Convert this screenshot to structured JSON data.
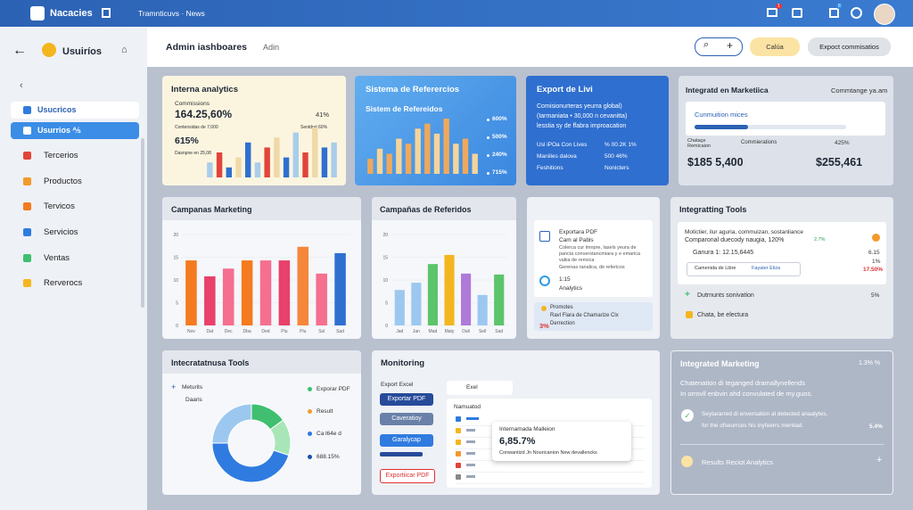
{
  "topbar": {
    "brand": "Nacacies",
    "breadcrumb": "Tramnticuvs · News",
    "badges": [
      "1",
      "8"
    ]
  },
  "sidebar": {
    "title": "Usuiríos",
    "items": [
      "Usucricos",
      "Usurrios ⅍",
      "Tercerios",
      "Productos",
      "Tervicos",
      "Servicios",
      "Ventas",
      "Rerverocs"
    ]
  },
  "header": {
    "title": "Admin iashboares",
    "tab": "Adin",
    "buttons": [
      "Calúa",
      "Expoct commisatios"
    ]
  },
  "analytics": {
    "title": "Interna analytics",
    "label": "Commissions",
    "value": "164.25,60%",
    "side": "41%",
    "note1": "Contensidas de 7,000",
    "note2": "Sentdral 60%",
    "value2": "615%",
    "note3": "Dasnpne en 25,08",
    "bars": {
      "values": [
        3,
        5,
        2,
        4,
        7,
        3,
        6,
        8,
        4,
        9,
        5,
        10,
        6,
        7
      ],
      "colors": [
        "#a9cdea",
        "#e2443a",
        "#2f6fd0",
        "#f0d9a8",
        "#2f6fd0",
        "#a9cdea",
        "#e2443a",
        "#f0d9a8",
        "#2f6fd0",
        "#a9cdea",
        "#e2443a",
        "#f0d9a8",
        "#2f6fd0",
        "#a9cdea"
      ]
    }
  },
  "referencias": {
    "title": "Sistema de Referercios",
    "subtitle": "Sistem de Refereidos",
    "labels": [
      "600%",
      "500%",
      "240%",
      "715%"
    ],
    "bars": {
      "values": [
        3,
        5,
        4,
        7,
        6,
        9,
        10,
        8,
        11,
        6,
        7,
        4
      ],
      "colors": [
        "#f0a85a",
        "#f5d49a",
        "#f0a85a",
        "#f5d49a",
        "#f0a85a",
        "#f5d49a",
        "#f0a85a",
        "#f5d49a",
        "#f0a85a",
        "#f5d49a",
        "#f0a85a",
        "#f5d49a"
      ]
    }
  },
  "export": {
    "title": "Export de Livi",
    "lines": [
      "Comisionurteras yeurra global)",
      "(Iarmaniata • 30,000 n cevanitta)",
      "lesstia sy de ffabra improacation"
    ],
    "stats": [
      [
        "Usl iPOa Con Lives",
        "% 00.2K 1%"
      ],
      [
        "Maniiles dalova",
        "500 46%"
      ],
      [
        "Feshitions",
        "Nonicters"
      ]
    ]
  },
  "marketing": {
    "title": "Integratd en Marketiica",
    "time": "Commtange ya.am",
    "box": "Cunmuition mices",
    "label1": "Chataçe Remicaion",
    "label2": "Commierations",
    "pct": "425%",
    "amount1": "$185 5,400",
    "amount2": "$255,461"
  },
  "campanas": {
    "title": "Campanas Marketing",
    "categories": [
      "Nov",
      "Dat",
      "Dec",
      "Dba",
      "Ded",
      "Plu",
      "Plu",
      "Ssl",
      "Sad"
    ],
    "values": [
      14.3,
      10.8,
      12.5,
      14.3,
      14.3,
      14.3,
      17.3,
      11.4,
      15.9
    ],
    "colors": [
      "#f47b20",
      "#e8416b",
      "#f56f8f",
      "#f47b20",
      "#f56f8f",
      "#e8416b",
      "#f4873a",
      "#f56f8f",
      "#2f6fd0"
    ],
    "ylim": [
      0,
      20
    ],
    "yticks": [
      0,
      5,
      10,
      15,
      20
    ]
  },
  "referidos": {
    "title": "Campañas de Referidos",
    "categories": [
      "Jad",
      "Jan",
      "Mad",
      "Maty",
      "Dali",
      "Sell",
      "Sad"
    ],
    "values": [
      7.8,
      9.4,
      13.5,
      15.5,
      11.4,
      6.7,
      11.2
    ],
    "colors": [
      "#9cc8f0",
      "#9cc8f0",
      "#5cc46a",
      "#f3b61f",
      "#b07ad9",
      "#9cc8f0",
      "#5cc46a"
    ],
    "ylim": [
      0,
      20
    ],
    "yticks": [
      0,
      5,
      10,
      15,
      20
    ]
  },
  "pdf": {
    "title": "Exportara PDF",
    "subtitle": "Cam al Pabls",
    "lines": [
      "Colerca cur lmnpre, lasels yeura de",
      "pancia converstancmiara y e emarica",
      "valiia de rerivica"
    ],
    "footer": "Gerenas ranalica, de refericos",
    "time": "1:15",
    "analytics": "Analytics",
    "promo": [
      "Promotes",
      "Ravl Flara de Chamarize Clx",
      "Derrection"
    ],
    "pct": "3%"
  },
  "tools": {
    "title": "Integratting Tools",
    "line1": "Motictier, ilur aguria, commuizan, sostanliance",
    "line2": "Comparonal duecody naugia, 120%",
    "pct1": "2.7%",
    "ganura": "Ganura 1: 12.15,6445",
    "v1": "6.15",
    "v2": "1%",
    "select1": "Camenida de Libre",
    "select2": "Fayater Eliza",
    "v3": "17.50%",
    "item1": "Dutrnunts sonivation",
    "item1pct": "5%",
    "item2": "Chata, be electura"
  },
  "donut": {
    "title": "Intecratatnusa Tools",
    "label1": "Meturits",
    "label2": "Daaris",
    "legend": [
      "Exporar PDF",
      "Result",
      "Ca l64e d",
      "688.15%"
    ],
    "legend_colors": [
      "#3fbf6f",
      "#f39a2b",
      "#2f7be0",
      "#1f4fa8"
    ],
    "values": [
      15,
      15,
      45,
      25
    ],
    "colors": [
      "#3fbf6f",
      "#a8e6b8",
      "#2f7be0",
      "#9cc8f0"
    ]
  },
  "monitoring": {
    "title": "Monitoring",
    "export": "Export Excel",
    "buttons": [
      "Exportar PDF",
      "Caveratioy",
      "Garalycap",
      "Exportiicar PDF"
    ],
    "tab": "Exel",
    "subtitle": "Namuatod",
    "popup": {
      "title": "Internamada Malleion",
      "value": "6,85.7%",
      "text": "Conwantizd Jn Nouricanion New devallencks"
    }
  },
  "integrated": {
    "title": "Integrated Marketing",
    "pct": "1.3% %",
    "line1": "Chatenation di teganged dramallynellends",
    "line2": "In orrovll enbvin ahd convulated de my.guos.",
    "line3": "Seytararred di enversation al detected anaalytes.",
    "line4": "for the ofseurrces his inyfeerrs menitad.",
    "pct2": "5.4%",
    "results": "Results Reciot Analytics"
  }
}
